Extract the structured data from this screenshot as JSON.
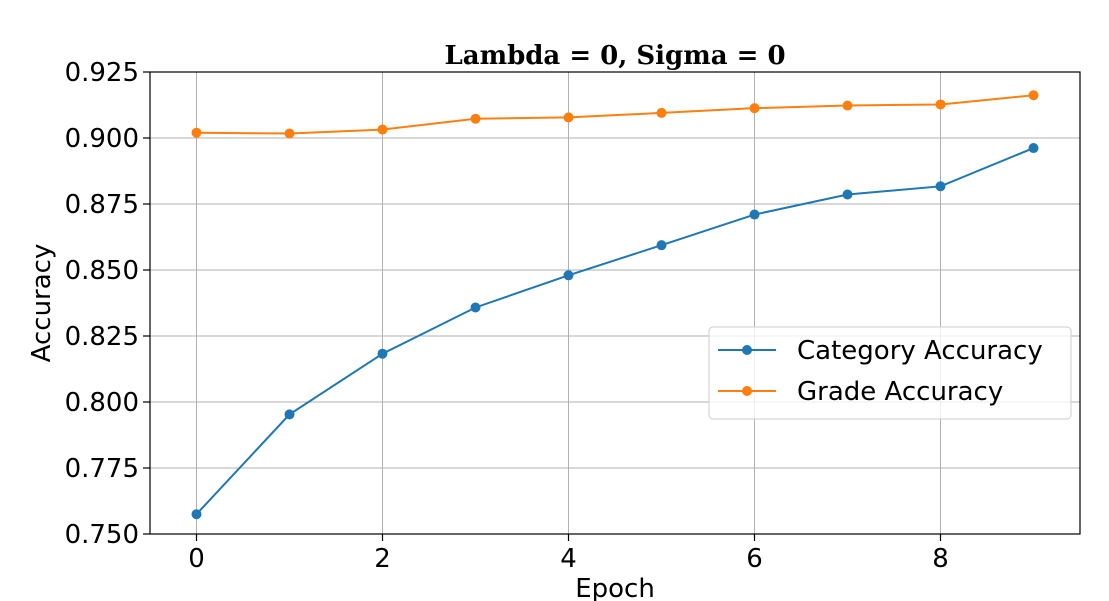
{
  "chart_data": {
    "type": "line",
    "title": "Lambda = 0, Sigma = 0",
    "xlabel": "Epoch",
    "ylabel": "Accuracy",
    "xlim": [
      -0.5,
      9.5
    ],
    "ylim": [
      0.75,
      0.925
    ],
    "x_ticks": [
      0,
      2,
      4,
      6,
      8
    ],
    "y_ticks": [
      0.75,
      0.775,
      0.8,
      0.825,
      0.85,
      0.875,
      0.9,
      0.925
    ],
    "x_tick_labels": [
      "0",
      "2",
      "4",
      "6",
      "8"
    ],
    "y_tick_labels": [
      "0.750",
      "0.775",
      "0.800",
      "0.825",
      "0.850",
      "0.875",
      "0.900",
      "0.925"
    ],
    "grid": true,
    "legend_position": "center-right",
    "x": [
      0,
      1,
      2,
      3,
      4,
      5,
      6,
      7,
      8,
      9
    ],
    "series": [
      {
        "name": "Category Accuracy",
        "color": "#1f77b4",
        "values": [
          0.7575,
          0.7953,
          0.8183,
          0.8358,
          0.848,
          0.8594,
          0.871,
          0.8786,
          0.8817,
          0.8962
        ]
      },
      {
        "name": "Grade Accuracy",
        "color": "#ff7f0e",
        "values": [
          0.902,
          0.9017,
          0.9032,
          0.9073,
          0.9078,
          0.9095,
          0.9113,
          0.9123,
          0.9127,
          0.9162
        ]
      }
    ]
  }
}
